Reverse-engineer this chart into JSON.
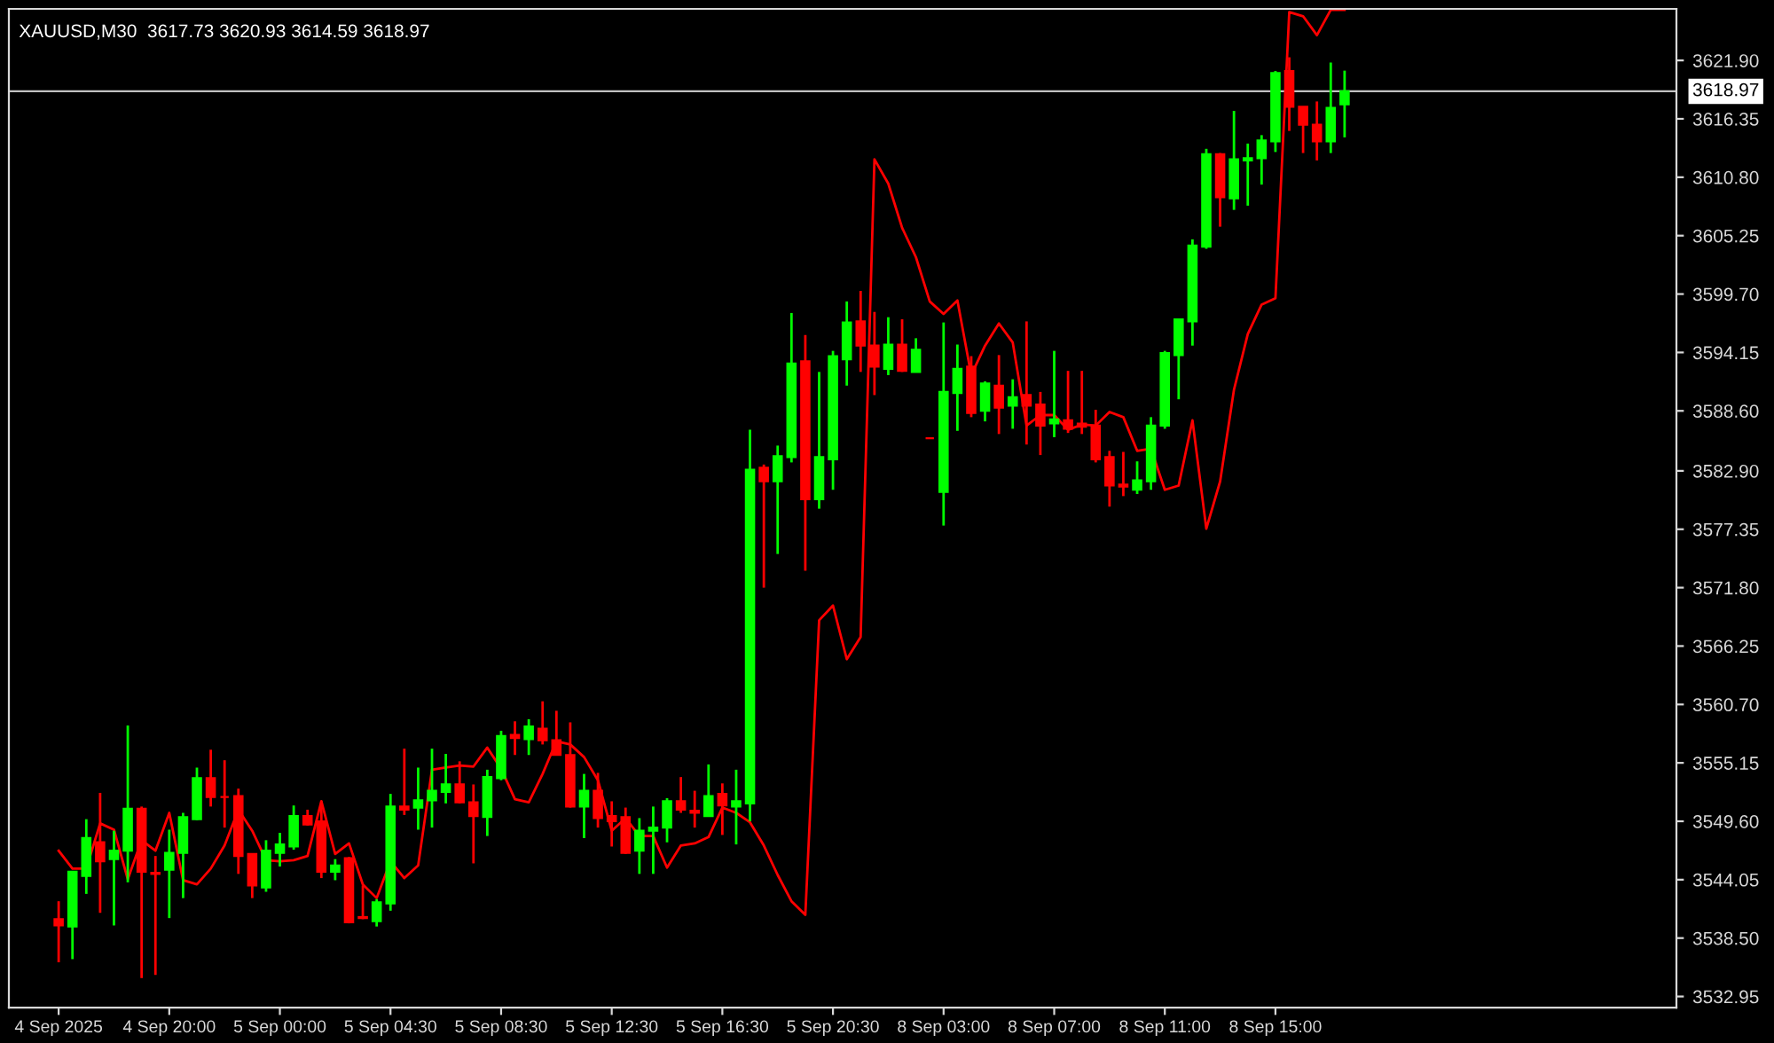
{
  "chart_data": {
    "type": "candlestick",
    "title": "XAUUSD,M30  3617.73 3620.93 3614.59 3618.97",
    "categories": [
      "4 Sep 2025",
      null,
      null,
      null,
      null,
      null,
      null,
      null,
      "4 Sep 20:00",
      null,
      null,
      null,
      null,
      null,
      null,
      null,
      "5 Sep 00:00",
      null,
      null,
      null,
      null,
      null,
      null,
      null,
      "5 Sep 04:30",
      null,
      null,
      null,
      null,
      null,
      null,
      null,
      "5 Sep 08:30",
      null,
      null,
      null,
      null,
      null,
      null,
      null,
      "5 Sep 12:30",
      null,
      null,
      null,
      null,
      null,
      null,
      null,
      "5 Sep 16:30",
      null,
      null,
      null,
      null,
      null,
      null,
      null,
      "5 Sep 20:30",
      null,
      null,
      null,
      null,
      null,
      null,
      null,
      "8 Sep 03:00",
      null,
      null,
      null,
      null,
      null,
      null,
      null,
      "8 Sep 07:00",
      null,
      null,
      null,
      null,
      null,
      null,
      null,
      "8 Sep 11:00",
      null,
      null,
      null,
      null,
      null,
      null,
      null,
      "8 Sep 15:00",
      null,
      null,
      null,
      null,
      null
    ],
    "ohlc": [
      [
        3540.3,
        3542.0,
        3536.2,
        3539.7
      ],
      [
        3539.6,
        3544.8,
        3536.5,
        3544.8
      ],
      [
        3544.4,
        3549.8,
        3542.7,
        3548.0
      ],
      [
        3547.6,
        3552.3,
        3540.9,
        3545.8
      ],
      [
        3546.0,
        3548.7,
        3539.7,
        3546.8
      ],
      [
        3546.8,
        3558.7,
        3543.8,
        3550.8
      ],
      [
        3550.8,
        3551.0,
        3534.7,
        3544.8
      ],
      [
        3544.7,
        3546.3,
        3535.0,
        3544.6
      ],
      [
        3545.0,
        3548.8,
        3540.4,
        3546.6
      ],
      [
        3546.6,
        3550.4,
        3542.3,
        3550.0
      ],
      [
        3549.8,
        3554.7,
        3549.7,
        3553.7
      ],
      [
        3553.7,
        3556.4,
        3551.0,
        3551.9
      ],
      [
        3551.9,
        3555.4,
        3549.0,
        3551.9
      ],
      [
        3552.0,
        3552.7,
        3544.6,
        3546.3
      ],
      [
        3546.5,
        3546.5,
        3542.3,
        3543.5
      ],
      [
        3543.3,
        3547.8,
        3542.9,
        3546.8
      ],
      [
        3546.6,
        3548.5,
        3545.3,
        3547.4
      ],
      [
        3547.2,
        3551.1,
        3546.9,
        3550.1
      ],
      [
        3550.1,
        3550.7,
        3549.2,
        3549.3
      ],
      [
        3549.6,
        3551.5,
        3544.2,
        3544.8
      ],
      [
        3544.8,
        3546.0,
        3544.0,
        3545.4
      ],
      [
        3546.1,
        3546.2,
        3539.9,
        3540.0
      ],
      [
        3540.5,
        3543.5,
        3540.3,
        3540.4
      ],
      [
        3540.1,
        3542.2,
        3539.6,
        3541.9
      ],
      [
        3541.8,
        3552.2,
        3541.1,
        3551.0
      ],
      [
        3551.0,
        3556.5,
        3550.2,
        3550.7
      ],
      [
        3550.9,
        3554.7,
        3548.8,
        3551.6
      ],
      [
        3551.6,
        3556.5,
        3549.0,
        3552.5
      ],
      [
        3552.4,
        3556.0,
        3551.3,
        3553.1
      ],
      [
        3553.1,
        3555.3,
        3551.3,
        3551.4
      ],
      [
        3551.4,
        3553.1,
        3545.6,
        3550.1
      ],
      [
        3550.0,
        3554.5,
        3548.2,
        3553.8
      ],
      [
        3553.7,
        3558.2,
        3553.5,
        3557.7
      ],
      [
        3557.8,
        3559.1,
        3555.9,
        3557.5
      ],
      [
        3557.4,
        3559.3,
        3555.9,
        3558.6
      ],
      [
        3558.4,
        3561.0,
        3556.9,
        3557.3
      ],
      [
        3557.3,
        3560.1,
        3555.9,
        3555.9
      ],
      [
        3555.9,
        3559.0,
        3550.9,
        3551.0
      ],
      [
        3551.0,
        3554.1,
        3548.0,
        3552.5
      ],
      [
        3552.5,
        3554.2,
        3549.0,
        3549.9
      ],
      [
        3550.1,
        3551.5,
        3547.2,
        3549.6
      ],
      [
        3550.0,
        3550.9,
        3546.5,
        3546.6
      ],
      [
        3546.8,
        3549.9,
        3544.6,
        3548.7
      ],
      [
        3548.7,
        3551.0,
        3544.6,
        3549.0
      ],
      [
        3549.0,
        3551.8,
        3547.6,
        3551.5
      ],
      [
        3551.5,
        3553.8,
        3550.4,
        3550.7
      ],
      [
        3550.6,
        3552.5,
        3549.0,
        3550.4
      ],
      [
        3550.1,
        3555.0,
        3550.1,
        3552.0
      ],
      [
        3552.2,
        3553.2,
        3548.3,
        3551.1
      ],
      [
        3551.0,
        3554.5,
        3547.4,
        3551.5
      ],
      [
        3551.3,
        3586.8,
        3549.6,
        3583.0
      ],
      [
        3583.2,
        3583.5,
        3571.8,
        3581.9
      ],
      [
        3581.9,
        3585.3,
        3575.0,
        3584.3
      ],
      [
        3584.2,
        3597.9,
        3583.7,
        3593.1
      ],
      [
        3593.3,
        3595.8,
        3573.4,
        3580.2
      ],
      [
        3580.2,
        3592.3,
        3579.3,
        3584.2
      ],
      [
        3584.0,
        3594.3,
        3581.1,
        3593.8
      ],
      [
        3593.5,
        3599.0,
        3591.0,
        3597.0
      ],
      [
        3597.1,
        3600.0,
        3592.3,
        3594.8
      ],
      [
        3594.8,
        3598.0,
        3590.1,
        3592.8
      ],
      [
        3592.6,
        3597.5,
        3592.0,
        3594.9
      ],
      [
        3594.9,
        3597.3,
        3592.3,
        3592.4
      ],
      [
        3592.3,
        3595.5,
        3592.3,
        3594.4
      ],
      [
        3586.0,
        3586.0,
        3586.0,
        3586.0
      ],
      [
        3580.9,
        3597.0,
        3577.7,
        3590.4
      ],
      [
        3590.3,
        3594.9,
        3586.7,
        3592.6
      ],
      [
        3592.8,
        3593.8,
        3588.0,
        3588.4
      ],
      [
        3588.6,
        3591.4,
        3587.6,
        3591.2
      ],
      [
        3591.0,
        3593.9,
        3586.4,
        3588.9
      ],
      [
        3589.1,
        3591.6,
        3586.9,
        3589.9
      ],
      [
        3590.1,
        3597.1,
        3585.4,
        3589.1
      ],
      [
        3589.2,
        3590.4,
        3584.4,
        3587.2
      ],
      [
        3587.4,
        3594.3,
        3586.1,
        3587.8
      ],
      [
        3587.7,
        3592.4,
        3586.5,
        3586.9
      ],
      [
        3587.4,
        3592.4,
        3586.4,
        3587.1
      ],
      [
        3587.2,
        3588.7,
        3583.7,
        3584.0
      ],
      [
        3584.2,
        3584.8,
        3579.5,
        3581.5
      ],
      [
        3581.6,
        3584.7,
        3580.5,
        3581.4
      ],
      [
        3581.1,
        3583.8,
        3580.7,
        3582.0
      ],
      [
        3581.9,
        3588.0,
        3581.1,
        3587.2
      ],
      [
        3587.2,
        3594.3,
        3586.9,
        3594.1
      ],
      [
        3593.9,
        3597.3,
        3589.7,
        3597.3
      ],
      [
        3597.1,
        3604.9,
        3594.8,
        3604.3
      ],
      [
        3604.2,
        3613.5,
        3604.0,
        3613.0
      ],
      [
        3613.0,
        3613.1,
        3606.1,
        3608.9
      ],
      [
        3608.8,
        3617.1,
        3607.7,
        3612.5
      ],
      [
        3612.4,
        3614.0,
        3608.1,
        3612.6
      ],
      [
        3612.6,
        3614.8,
        3610.1,
        3614.3
      ],
      [
        3614.2,
        3620.9,
        3613.2,
        3620.7
      ],
      [
        3620.9,
        3622.2,
        3615.2,
        3617.5
      ],
      [
        3617.5,
        3617.5,
        3613.1,
        3615.8
      ],
      [
        3615.8,
        3618.0,
        3612.4,
        3614.2
      ],
      [
        3614.2,
        3621.7,
        3613.1,
        3617.4
      ],
      [
        3617.73,
        3620.93,
        3614.59,
        3618.97
      ]
    ],
    "colors": [
      "#ff0000",
      "#00ff00",
      "#00ff00",
      "#ff0000",
      "#00ff00",
      "#00ff00",
      "#ff0000",
      "#ff0000",
      "#00ff00",
      "#00ff00",
      "#00ff00",
      "#ff0000",
      "#ff0000",
      "#ff0000",
      "#ff0000",
      "#00ff00",
      "#00ff00",
      "#00ff00",
      "#ff0000",
      "#ff0000",
      "#00ff00",
      "#ff0000",
      "#ff0000",
      "#00ff00",
      "#00ff00",
      "#ff0000",
      "#00ff00",
      "#00ff00",
      "#00ff00",
      "#ff0000",
      "#ff0000",
      "#00ff00",
      "#00ff00",
      "#ff0000",
      "#00ff00",
      "#ff0000",
      "#ff0000",
      "#ff0000",
      "#00ff00",
      "#ff0000",
      "#ff0000",
      "#ff0000",
      "#00ff00",
      "#00ff00",
      "#00ff00",
      "#ff0000",
      "#ff0000",
      "#00ff00",
      "#ff0000",
      "#00ff00",
      "#00ff00",
      "#ff0000",
      "#00ff00",
      "#00ff00",
      "#ff0000",
      "#00ff00",
      "#00ff00",
      "#00ff00",
      "#ff0000",
      "#ff0000",
      "#00ff00",
      "#ff0000",
      "#00ff00",
      "#ff0000",
      "#00ff00",
      "#00ff00",
      "#ff0000",
      "#00ff00",
      "#ff0000",
      "#00ff00",
      "#ff0000",
      "#ff0000",
      "#00ff00",
      "#ff0000",
      "#ff0000",
      "#ff0000",
      "#ff0000",
      "#ff0000",
      "#00ff00",
      "#00ff00",
      "#00ff00",
      "#00ff00",
      "#00ff00",
      "#00ff00",
      "#ff0000",
      "#00ff00",
      "#00ff00",
      "#00ff00",
      "#00ff00",
      "#ff0000",
      "#ff0000",
      "#ff0000",
      "#00ff00",
      "#00ff00"
    ],
    "series": [
      {
        "type": "line",
        "color": "#ff0000",
        "values": [
          3546.8,
          3545.1,
          3545.1,
          3549.4,
          3548.8,
          3544.1,
          3547.8,
          3546.8,
          3550.4,
          3544.0,
          3543.6,
          3545.1,
          3547.3,
          3550.7,
          3548.7,
          3545.9,
          3545.8,
          3545.9,
          3546.3,
          3551.5,
          3546.5,
          3547.5,
          3543.6,
          3542.3,
          3545.8,
          3544.2,
          3545.4,
          3554.5,
          3554.7,
          3554.9,
          3554.8,
          3556.6,
          3554.6,
          3551.7,
          3551.4,
          3554.1,
          3557.2,
          3556.9,
          3555.7,
          3553.5,
          3548.7,
          3549.9,
          3548.2,
          3548.2,
          3545.2,
          3547.3,
          3547.5,
          3548.1,
          3550.9,
          3550.4,
          3549.5,
          3547.3,
          3544.5,
          3542.0,
          3540.7,
          3568.7,
          3570.1,
          3565.0,
          3567.1,
          3612.5,
          3610.2,
          3606.0,
          3603.2,
          3599.0,
          3597.8,
          3599.1,
          3592.0,
          3594.8,
          3596.9,
          3595.1,
          3587.2,
          3588.2,
          3588.2,
          3586.8,
          3587.3,
          3587.2,
          3588.5,
          3588.0,
          3584.8,
          3585.0,
          3581.1,
          3581.5,
          3587.7,
          3577.4,
          3581.9,
          3590.6,
          3595.9,
          3598.7,
          3599.3,
          3626.5,
          3626.1,
          3624.3,
          3626.7,
          3626.7
        ]
      }
    ],
    "ylim": [
      3531.9,
      3626.8
    ],
    "yticks": [
      {
        "value": 3621.9,
        "label": "3621.90"
      },
      {
        "value": 3616.35,
        "label": "3616.35"
      },
      {
        "value": 3610.8,
        "label": "3610.80"
      },
      {
        "value": 3605.25,
        "label": "3605.25"
      },
      {
        "value": 3599.7,
        "label": "3599.70"
      },
      {
        "value": 3594.15,
        "label": "3594.15"
      },
      {
        "value": 3588.6,
        "label": "3588.60"
      },
      {
        "value": 3582.9,
        "label": "3582.90"
      },
      {
        "value": 3577.35,
        "label": "3577.35"
      },
      {
        "value": 3571.8,
        "label": "3571.80"
      },
      {
        "value": 3566.25,
        "label": "3566.25"
      },
      {
        "value": 3560.7,
        "label": "3560.70"
      },
      {
        "value": 3555.15,
        "label": "3555.15"
      },
      {
        "value": 3549.6,
        "label": "3549.60"
      },
      {
        "value": 3544.05,
        "label": "3544.05"
      },
      {
        "value": 3538.5,
        "label": "3538.50"
      },
      {
        "value": 3532.95,
        "label": "3532.95"
      }
    ],
    "ref_lines": [
      {
        "axis": "y",
        "value": 3618.97,
        "label": "3618.97",
        "color": "#c0c0c0"
      }
    ],
    "grid": false
  }
}
